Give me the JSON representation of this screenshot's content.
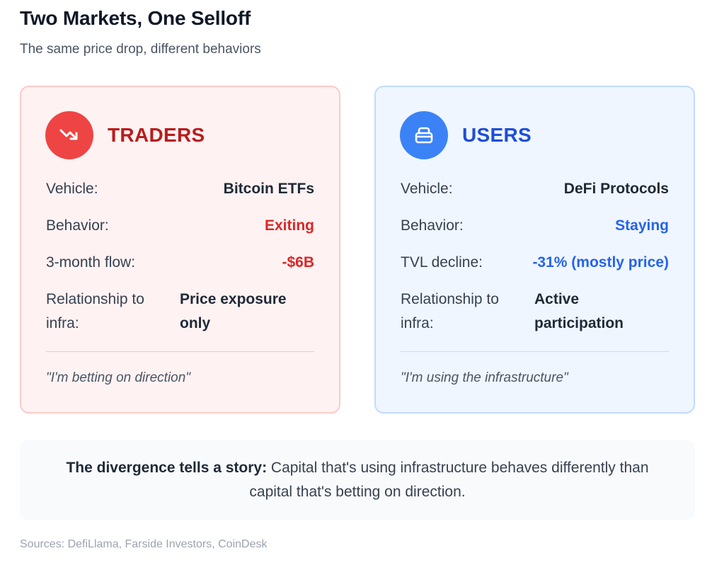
{
  "header": {
    "title": "Two Markets, One Selloff",
    "subtitle": "The same price drop, different behaviors"
  },
  "traders": {
    "icon": "trending-down-icon",
    "title": "TRADERS",
    "accent_color": "#dc2626",
    "vehicle_label": "Vehicle:",
    "vehicle_value": "Bitcoin ETFs",
    "behavior_label": "Behavior:",
    "behavior_value": "Exiting",
    "flow_label": "3-month flow:",
    "flow_value": "-$6B",
    "relationship_label": "Relationship to infra:",
    "relationship_value": "Price exposure only",
    "quote": "\"I'm betting on direction\""
  },
  "users": {
    "icon": "wallet-icon",
    "title": "USERS",
    "accent_color": "#2563eb",
    "vehicle_label": "Vehicle:",
    "vehicle_value": "DeFi Protocols",
    "behavior_label": "Behavior:",
    "behavior_value": "Staying",
    "tvl_label": "TVL decline:",
    "tvl_value": "-31% (mostly price)",
    "relationship_label": "Relationship to infra:",
    "relationship_value": "Active participation",
    "quote": "\"I'm using the infrastructure\""
  },
  "summary": {
    "lead": "The divergence tells a story:",
    "text": " Capital that's using infrastructure behaves differently than capital that's betting on direction."
  },
  "footer": {
    "sources": "Sources: DefiLlama, Farside Investors, CoinDesk"
  }
}
